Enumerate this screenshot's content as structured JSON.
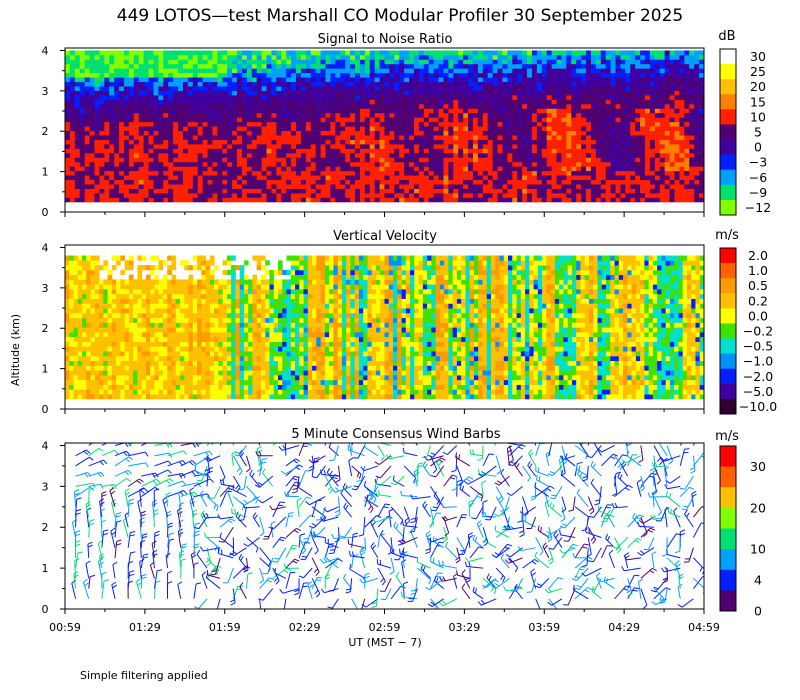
{
  "title": "449 LOTOS—test Marshall CO Modular Profiler 30 September 2025",
  "ylabel": "Altitude (km)",
  "xlabel": "UT  (MST − 7)",
  "footnote": "Simple filtering applied",
  "x_ticks": [
    "00:59",
    "01:29",
    "01:59",
    "02:29",
    "02:59",
    "03:29",
    "03:59",
    "04:29",
    "04:59"
  ],
  "chart_data": [
    {
      "type": "heatmap",
      "title": "Signal to Noise Ratio",
      "unit": "dB",
      "xlim": [
        "00:59",
        "04:59"
      ],
      "ylim": [
        0,
        4
      ],
      "y_ticks": [
        "0",
        "1",
        "2",
        "3",
        "4"
      ],
      "colorbar": {
        "labels": [
          "30",
          "25",
          "20",
          "15",
          "10",
          "5",
          "0",
          "−3",
          "−6",
          "−9",
          "−12"
        ],
        "colors": [
          "#ffffff",
          "#ffff00",
          "#ffc000",
          "#ff8000",
          "#ff2000",
          "#500070",
          "#4000a0",
          "#0020ff",
          "#00a0ff",
          "#00e070",
          "#80ff00"
        ]
      },
      "profile_db": [
        {
          "alt_km": 0.5,
          "snr_db": 8
        },
        {
          "alt_km": 1.0,
          "snr_db": 7
        },
        {
          "alt_km": 1.5,
          "snr_db": 8
        },
        {
          "alt_km": 2.0,
          "snr_db": 6
        },
        {
          "alt_km": 2.5,
          "snr_db": 2
        },
        {
          "alt_km": 3.0,
          "snr_db": -4
        },
        {
          "alt_km": 3.5,
          "snr_db": -9
        },
        {
          "alt_km": 4.0,
          "snr_db": -12
        }
      ]
    },
    {
      "type": "heatmap",
      "title": "Vertical Velocity",
      "unit": "m/s",
      "xlim": [
        "00:59",
        "04:59"
      ],
      "ylim": [
        0,
        4
      ],
      "y_ticks": [
        "0",
        "1",
        "2",
        "3",
        "4"
      ],
      "colorbar": {
        "labels": [
          "2.0",
          "1.0",
          "0.5",
          "0.2",
          "0.0",
          "−0.2",
          "−0.5",
          "−1.0",
          "−2.0",
          "−5.0",
          "−10.0"
        ],
        "colors": [
          "#ff0000",
          "#ff6000",
          "#ff9a00",
          "#ffc000",
          "#ffff00",
          "#40e000",
          "#00e0d0",
          "#0090ff",
          "#0020ff",
          "#4000a0",
          "#300030"
        ]
      },
      "typical_range_ms": [
        -0.5,
        0.5
      ]
    },
    {
      "type": "scatter",
      "title": "5 Minute Consensus Wind Barbs",
      "unit": "m/s",
      "xlim": [
        "00:59",
        "04:59"
      ],
      "ylim": [
        0,
        4
      ],
      "y_ticks": [
        "0",
        "1",
        "2",
        "3",
        "4"
      ],
      "colorbar": {
        "labels": [
          "30",
          "20",
          "10",
          "4",
          "0"
        ],
        "colors": [
          "#ff0000",
          "#ff6000",
          "#ffc000",
          "#80ff00",
          "#00e070",
          "#00a0ff",
          "#0020ff",
          "#500070"
        ]
      },
      "barb_rows_km": [
        0.25,
        0.5,
        0.75,
        1.0,
        1.25,
        1.5,
        1.75,
        2.0,
        2.25,
        2.5,
        2.75,
        3.0,
        3.25,
        3.5,
        3.75,
        4.0
      ]
    }
  ]
}
